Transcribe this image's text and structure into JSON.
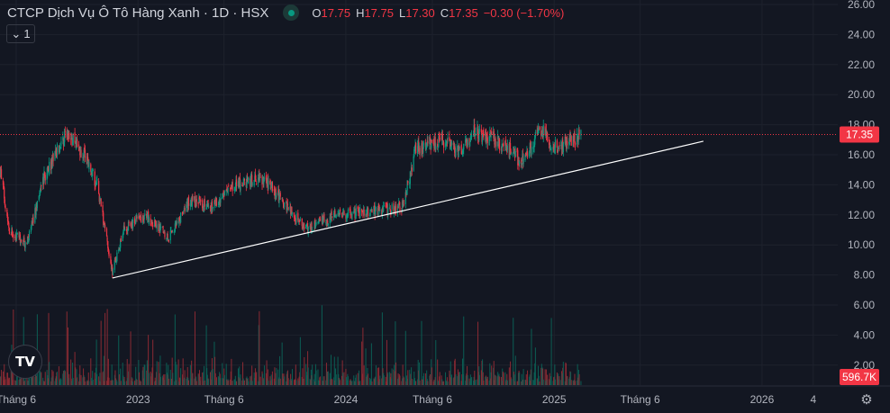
{
  "header": {
    "title": "CTCP Dịch Vụ Ô Tô Hàng Xanh · 1D · HSX",
    "status_color": "#089981",
    "open_label": "O",
    "open": "17.75",
    "high_label": "H",
    "high": "17.75",
    "low_label": "L",
    "low": "17.30",
    "close_label": "C",
    "close": "17.35",
    "change": "−0.30 (−1.70%)",
    "indicator_toggle": "1"
  },
  "colors": {
    "background": "#131722",
    "up": "#089981",
    "down": "#f23645",
    "trendline": "#ffffff",
    "grid": "#1e222d"
  },
  "chart_data": {
    "type": "candlestick",
    "title": "",
    "y_ticks": [
      "26.00",
      "24.00",
      "22.00",
      "20.00",
      "18.00",
      "16.00",
      "14.00",
      "12.00",
      "10.00",
      "8.00",
      "6.00",
      "4.00",
      "2.00"
    ],
    "ylim": [
      2,
      26
    ],
    "x_ticks": [
      {
        "label": "Tháng 6",
        "date": "2022-06-01"
      },
      {
        "label": "2023",
        "date": "2023-01-01"
      },
      {
        "label": "Tháng 6",
        "date": "2023-06-01"
      },
      {
        "label": "2024",
        "date": "2024-01-01"
      },
      {
        "label": "Tháng 6",
        "date": "2024-06-01"
      },
      {
        "label": "2025",
        "date": "2025-01-01"
      },
      {
        "label": "Tháng 6",
        "date": "2025-06-01"
      },
      {
        "label": "2026",
        "date": "2026-01-01"
      },
      {
        "label": "4",
        "date": "2026-04-01"
      }
    ],
    "approx_close_path": [
      [
        "2022-05-04",
        15.0
      ],
      [
        "2022-05-20",
        11.0
      ],
      [
        "2022-06-19",
        10.0
      ],
      [
        "2022-07-20",
        14.5
      ],
      [
        "2022-08-28",
        17.5
      ],
      [
        "2022-09-28",
        16.0
      ],
      [
        "2022-10-21",
        14.0
      ],
      [
        "2022-11-17",
        8.2
      ],
      [
        "2022-12-07",
        11.0
      ],
      [
        "2023-01-15",
        12.0
      ],
      [
        "2023-02-24",
        10.5
      ],
      [
        "2023-04-02",
        13.0
      ],
      [
        "2023-05-10",
        12.5
      ],
      [
        "2023-06-18",
        14.0
      ],
      [
        "2023-08-04",
        14.5
      ],
      [
        "2023-09-12",
        13.0
      ],
      [
        "2023-10-21",
        11.0
      ],
      [
        "2023-12-15",
        12.0
      ],
      [
        "2024-02-15",
        12.2
      ],
      [
        "2024-04-10",
        12.5
      ],
      [
        "2024-05-03",
        16.5
      ],
      [
        "2024-06-25",
        17.0
      ],
      [
        "2024-07-12",
        16.0
      ],
      [
        "2024-08-12",
        17.5
      ],
      [
        "2024-09-20",
        17.0
      ],
      [
        "2024-11-06",
        15.5
      ],
      [
        "2024-12-07",
        17.8
      ],
      [
        "2025-01-01",
        16.5
      ],
      [
        "2025-02-01",
        17.0
      ],
      [
        "2025-02-17",
        17.35
      ]
    ],
    "trendline": [
      [
        "2022-11-17",
        7.8
      ],
      [
        "2025-09-20",
        16.9
      ]
    ],
    "last_price": {
      "value": 17.35,
      "label": "17.35"
    },
    "volume": {
      "last_label": "596.7K"
    }
  }
}
